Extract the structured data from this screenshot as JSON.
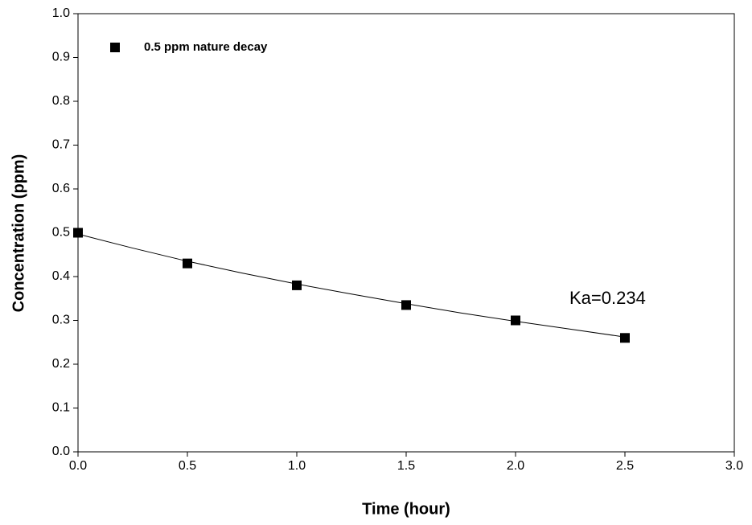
{
  "chart_data": {
    "type": "scatter",
    "xlabel": "Time (hour)",
    "ylabel": "Concentration (ppm)",
    "annotation": "Ka=0.234",
    "xlim": [
      0,
      3
    ],
    "ylim": [
      0,
      1
    ],
    "xticks": [
      {
        "value": 0,
        "label": "0.0"
      },
      0.5,
      {
        "value": 1,
        "label": "1.0"
      },
      1.5,
      {
        "value": 2,
        "label": "2.0"
      },
      2.5,
      {
        "value": 3,
        "label": "3.0"
      }
    ],
    "yticks": [
      {
        "value": 0,
        "label": "0.0"
      },
      0.1,
      0.2,
      0.3,
      0.4,
      0.5,
      0.6,
      0.7,
      0.8,
      0.9,
      {
        "value": 1,
        "label": "1.0"
      }
    ],
    "legend": "upper left",
    "series": [
      {
        "name": "0.5 ppm nature decay",
        "color": "#000000",
        "x": [
          0,
          0.5,
          1,
          1.5,
          2,
          2.5
        ],
        "values": [
          0.5,
          0.43,
          0.38,
          0.335,
          0.3,
          0.26
        ]
      }
    ],
    "fit": {
      "color": "#000000",
      "x": [
        0,
        0.25,
        0.5,
        0.75,
        1,
        1.25,
        1.5,
        1.75,
        2,
        2.25,
        2.5
      ],
      "values": [
        0.497,
        0.465,
        0.435,
        0.408,
        0.383,
        0.36,
        0.338,
        0.317,
        0.298,
        0.28,
        0.262
      ]
    }
  }
}
